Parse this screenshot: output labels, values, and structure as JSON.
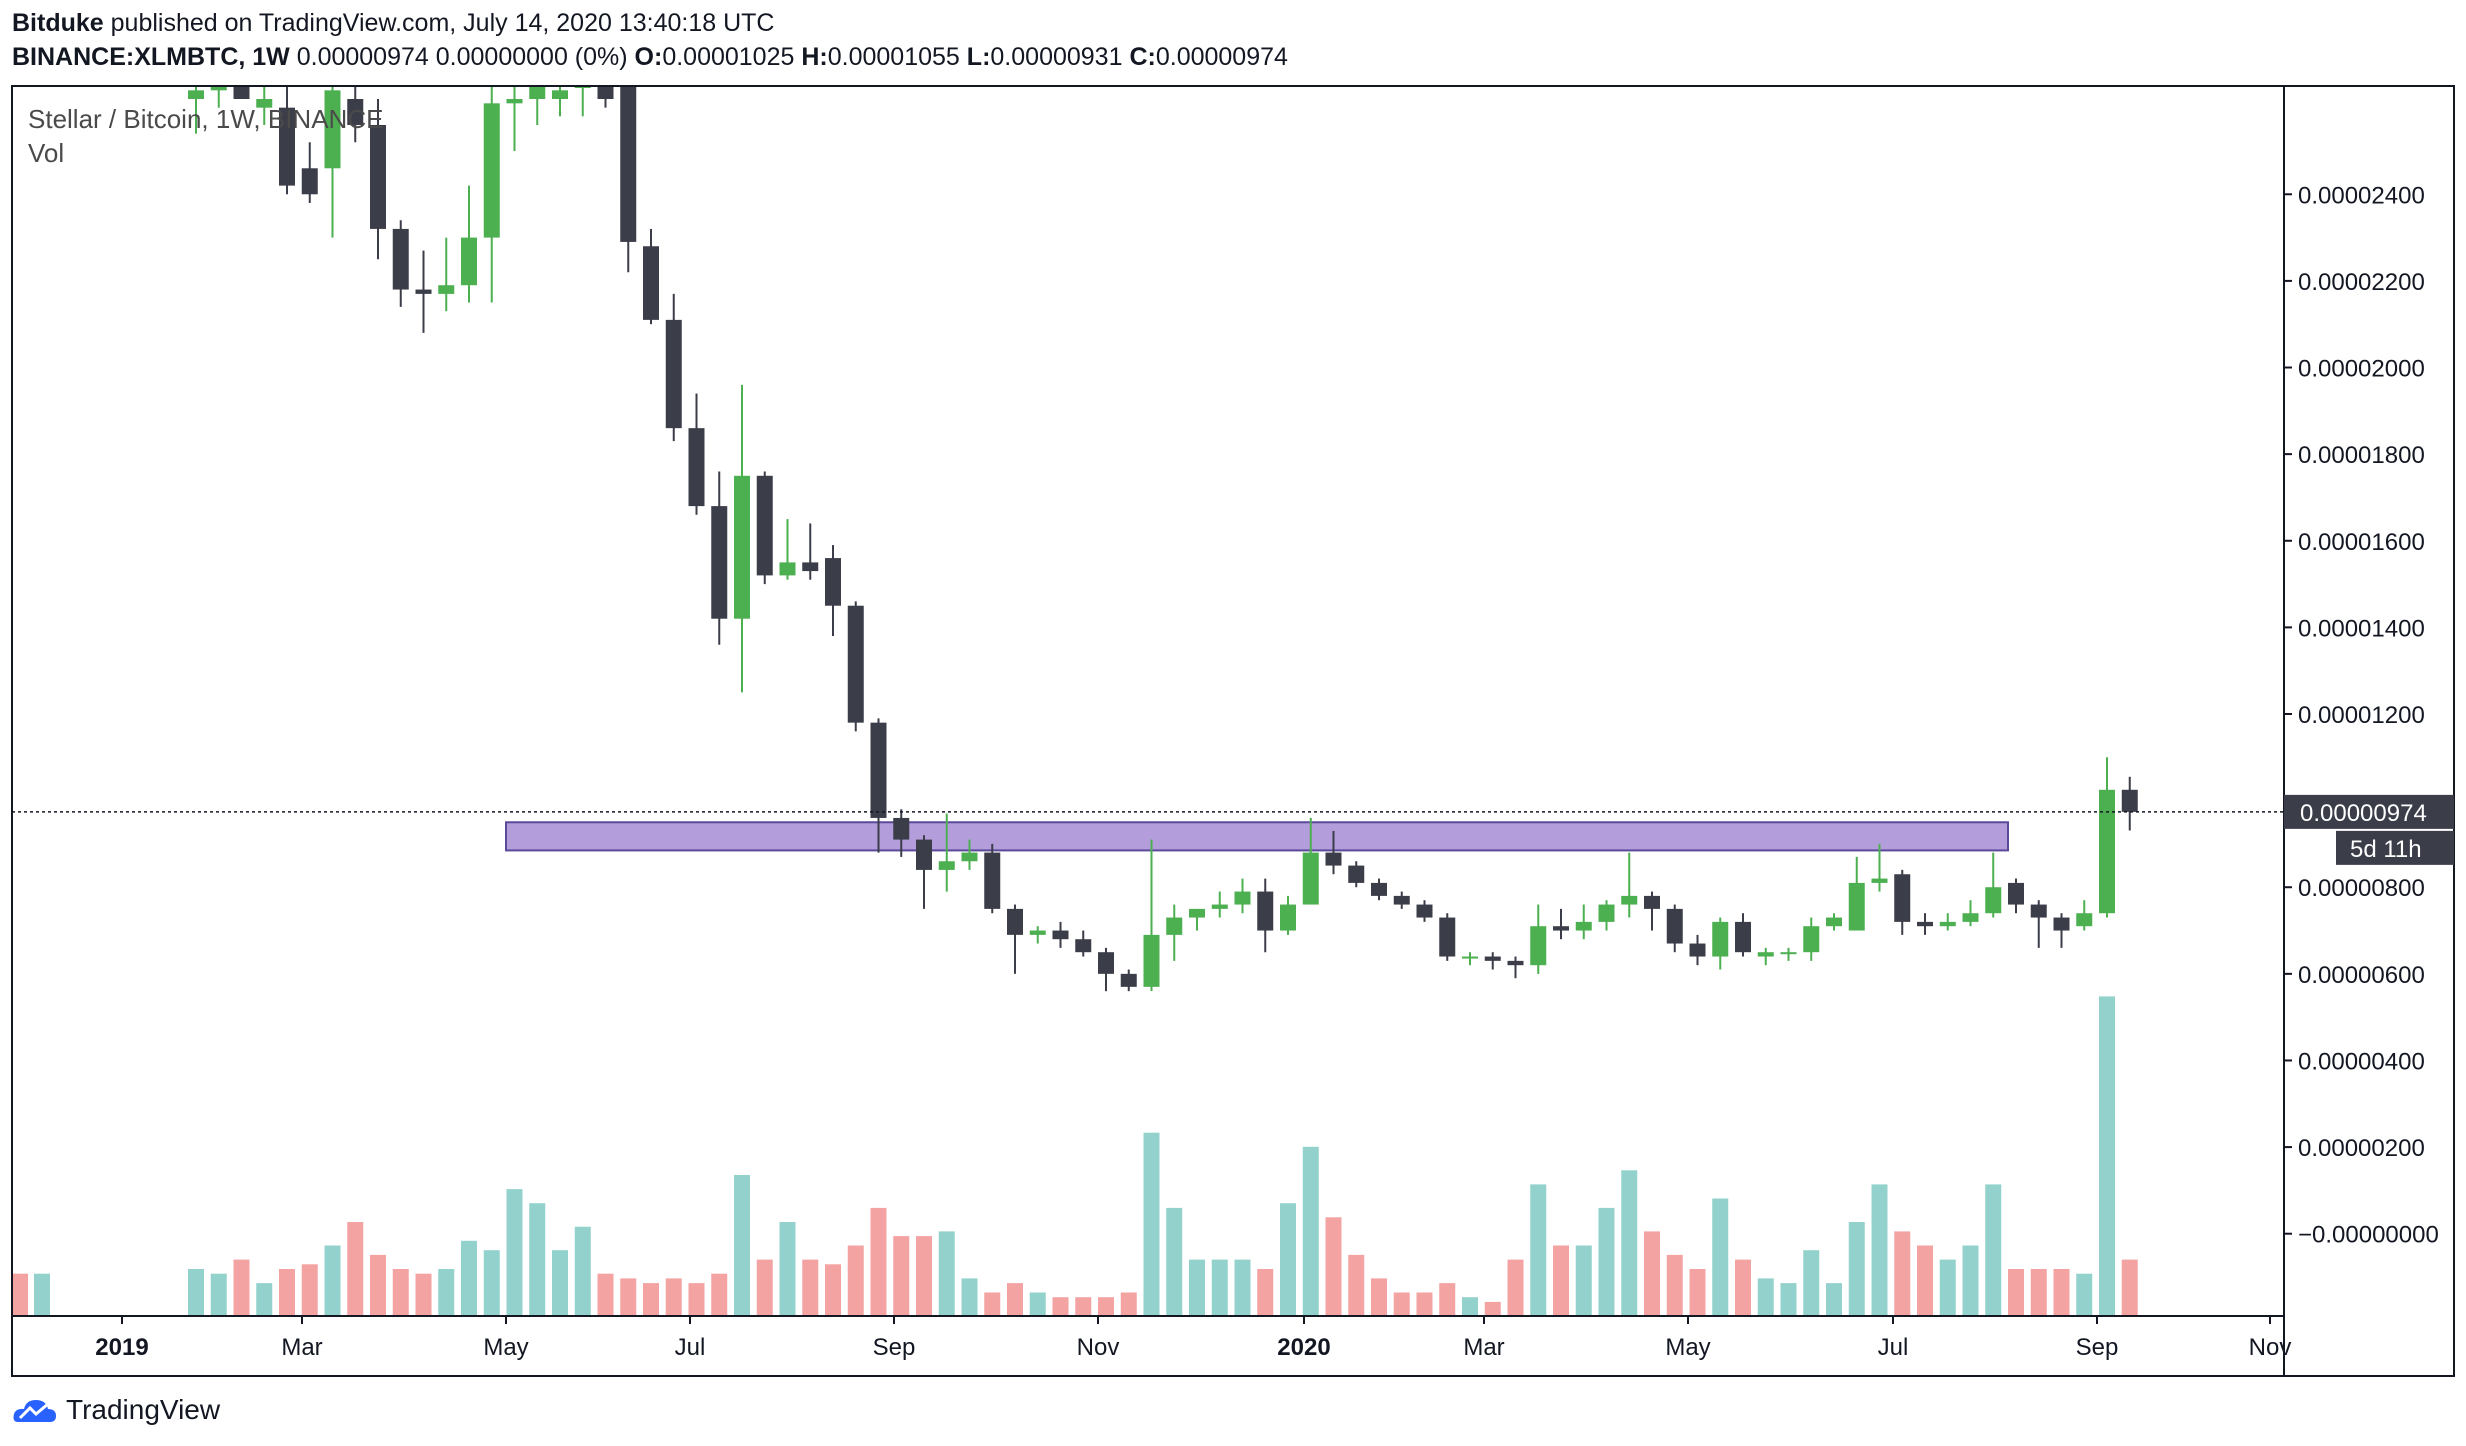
{
  "header": {
    "author": "Bitduke",
    "published_text": "published on TradingView.com, July 14, 2020 13:40:18 UTC",
    "symbol": "BINANCE:XLMBTC, 1W",
    "last": "0.00000974",
    "change": "0.00000000 (0%)",
    "o_label": "O:",
    "o_value": "0.00001025",
    "h_label": "H:",
    "h_value": "0.00001055",
    "l_label": "L:",
    "l_value": "0.00000931",
    "c_label": "C:",
    "c_value": "0.00000974"
  },
  "legend": {
    "title": "Stellar / Bitcoin, 1W, BINANCE",
    "vol": "Vol"
  },
  "price_axis": {
    "ticks": [
      "0.00002400",
      "0.00002200",
      "0.00002000",
      "0.00001800",
      "0.00001600",
      "0.00001400",
      "0.00001200",
      "0.00000800",
      "0.00000600",
      "0.00000400",
      "0.00000200",
      "−0.00000000"
    ],
    "last_label": "0.00000974",
    "countdown": "5d 11h"
  },
  "time_axis": {
    "labels": [
      "2019",
      "Mar",
      "May",
      "Jul",
      "Sep",
      "Nov",
      "2020",
      "Mar",
      "May",
      "Jul",
      "Sep",
      "Nov"
    ]
  },
  "footer": {
    "brand": "TradingView"
  },
  "colors": {
    "up": "#4caf50",
    "down": "#3b3d48",
    "vol_up": "#93d2cc",
    "vol_down": "#f4a3a3",
    "zone": "#b39ddb",
    "zone_border": "#5b4a9a"
  },
  "chart_data": {
    "type": "candlestick",
    "interval": "1W",
    "x_range": [
      "2018-12-10",
      "2020-11-30"
    ],
    "y_range": [
      -1.9e-06,
      2.65e-05
    ],
    "last_price": 9.74e-06,
    "support_zone": {
      "low": 8.85e-06,
      "high": 9.5e-06,
      "start": "2019-05-06",
      "end": "2020-08-03"
    },
    "candles": [
      {
        "o": 2.62e-05,
        "h": 2.7e-05,
        "l": 2.54e-05,
        "c": 2.64e-05,
        "v": 1.0
      },
      {
        "o": 2.64e-05,
        "h": 2.7e-05,
        "l": 2.6e-05,
        "c": 2.66e-05,
        "v": 0.9
      },
      {
        "o": 2.66e-05,
        "h": 2.7e-05,
        "l": 2.62e-05,
        "c": 2.62e-05,
        "v": 1.2
      },
      {
        "o": 2.6e-05,
        "h": 2.69e-05,
        "l": 2.56e-05,
        "c": 2.62e-05,
        "v": 0.7
      },
      {
        "o": 2.6e-05,
        "h": 2.7e-05,
        "l": 2.4e-05,
        "c": 2.42e-05,
        "v": 1.0
      },
      {
        "o": 2.46e-05,
        "h": 2.52e-05,
        "l": 2.38e-05,
        "c": 2.4e-05,
        "v": 1.1
      },
      {
        "o": 2.46e-05,
        "h": 2.65e-05,
        "l": 2.3e-05,
        "c": 2.64e-05,
        "v": 1.5
      },
      {
        "o": 2.62e-05,
        "h": 2.69e-05,
        "l": 2.52e-05,
        "c": 2.56e-05,
        "v": 2.0
      },
      {
        "o": 2.56e-05,
        "h": 2.62e-05,
        "l": 2.25e-05,
        "c": 2.32e-05,
        "v": 1.3
      },
      {
        "o": 2.32e-05,
        "h": 2.34e-05,
        "l": 2.14e-05,
        "c": 2.18e-05,
        "v": 1.0
      },
      {
        "o": 2.18e-05,
        "h": 2.27e-05,
        "l": 2.08e-05,
        "c": 2.17e-05,
        "v": 0.9
      },
      {
        "o": 2.17e-05,
        "h": 2.3e-05,
        "l": 2.13e-05,
        "c": 2.19e-05,
        "v": 1.0
      },
      {
        "o": 2.19e-05,
        "h": 2.42e-05,
        "l": 2.15e-05,
        "c": 2.3e-05,
        "v": 1.6
      },
      {
        "o": 2.3e-05,
        "h": 2.67e-05,
        "l": 2.15e-05,
        "c": 2.61e-05,
        "v": 1.4
      },
      {
        "o": 2.61e-05,
        "h": 2.7e-05,
        "l": 2.5e-05,
        "c": 2.62e-05,
        "v": 2.7
      },
      {
        "o": 2.62e-05,
        "h": 2.7e-05,
        "l": 2.56e-05,
        "c": 2.66e-05,
        "v": 2.4
      },
      {
        "o": 2.62e-05,
        "h": 2.7e-05,
        "l": 2.58e-05,
        "c": 2.64e-05,
        "v": 1.4
      },
      {
        "o": 2.65e-05,
        "h": 2.7e-05,
        "l": 2.58e-05,
        "c": 2.65e-05,
        "v": 1.9
      },
      {
        "o": 2.65e-05,
        "h": 2.69e-05,
        "l": 2.6e-05,
        "c": 2.62e-05,
        "v": 0.9
      },
      {
        "o": 2.68e-05,
        "h": 2.7e-05,
        "l": 2.22e-05,
        "c": 2.29e-05,
        "v": 0.8
      },
      {
        "o": 2.28e-05,
        "h": 2.32e-05,
        "l": 2.1e-05,
        "c": 2.11e-05,
        "v": 0.7
      },
      {
        "o": 2.11e-05,
        "h": 2.17e-05,
        "l": 1.83e-05,
        "c": 1.86e-05,
        "v": 0.8
      },
      {
        "o": 1.86e-05,
        "h": 1.94e-05,
        "l": 1.66e-05,
        "c": 1.68e-05,
        "v": 0.7
      },
      {
        "o": 1.68e-05,
        "h": 1.76e-05,
        "l": 1.36e-05,
        "c": 1.42e-05,
        "v": 0.9
      },
      {
        "o": 1.42e-05,
        "h": 1.96e-05,
        "l": 1.25e-05,
        "c": 1.75e-05,
        "v": 3.0
      },
      {
        "o": 1.75e-05,
        "h": 1.76e-05,
        "l": 1.5e-05,
        "c": 1.52e-05,
        "v": 1.2
      },
      {
        "o": 1.52e-05,
        "h": 1.65e-05,
        "l": 1.51e-05,
        "c": 1.55e-05,
        "v": 2.0
      },
      {
        "o": 1.55e-05,
        "h": 1.64e-05,
        "l": 1.51e-05,
        "c": 1.53e-05,
        "v": 1.2
      },
      {
        "o": 1.56e-05,
        "h": 1.59e-05,
        "l": 1.38e-05,
        "c": 1.45e-05,
        "v": 1.1
      },
      {
        "o": 1.45e-05,
        "h": 1.46e-05,
        "l": 1.16e-05,
        "c": 1.18e-05,
        "v": 1.5
      },
      {
        "o": 1.18e-05,
        "h": 1.19e-05,
        "l": 8.8e-06,
        "c": 9.6e-06,
        "v": 2.3
      },
      {
        "o": 9.6e-06,
        "h": 9.8e-06,
        "l": 8.7e-06,
        "c": 9.1e-06,
        "v": 1.7
      },
      {
        "o": 9.1e-06,
        "h": 9.2e-06,
        "l": 7.5e-06,
        "c": 8.4e-06,
        "v": 1.7
      },
      {
        "o": 8.4e-06,
        "h": 9.7e-06,
        "l": 7.9e-06,
        "c": 8.6e-06,
        "v": 1.8
      },
      {
        "o": 8.6e-06,
        "h": 9.1e-06,
        "l": 8.4e-06,
        "c": 8.8e-06,
        "v": 0.8
      },
      {
        "o": 8.8e-06,
        "h": 9e-06,
        "l": 7.4e-06,
        "c": 7.5e-06,
        "v": 0.5
      },
      {
        "o": 7.5e-06,
        "h": 7.6e-06,
        "l": 6e-06,
        "c": 6.9e-06,
        "v": 0.7
      },
      {
        "o": 6.9e-06,
        "h": 7.1e-06,
        "l": 6.7e-06,
        "c": 7e-06,
        "v": 0.5
      },
      {
        "o": 7e-06,
        "h": 7.2e-06,
        "l": 6.6e-06,
        "c": 6.8e-06,
        "v": 0.4
      },
      {
        "o": 6.8e-06,
        "h": 7e-06,
        "l": 6.4e-06,
        "c": 6.5e-06,
        "v": 0.4
      },
      {
        "o": 6.5e-06,
        "h": 6.6e-06,
        "l": 5.6e-06,
        "c": 6e-06,
        "v": 0.4
      },
      {
        "o": 6e-06,
        "h": 6.1e-06,
        "l": 5.6e-06,
        "c": 5.7e-06,
        "v": 0.5
      },
      {
        "o": 5.7e-06,
        "h": 9.1e-06,
        "l": 5.6e-06,
        "c": 6.9e-06,
        "v": 3.9
      },
      {
        "o": 6.9e-06,
        "h": 7.6e-06,
        "l": 6.3e-06,
        "c": 7.3e-06,
        "v": 2.3
      },
      {
        "o": 7.3e-06,
        "h": 7.5e-06,
        "l": 7e-06,
        "c": 7.5e-06,
        "v": 1.2
      },
      {
        "o": 7.5e-06,
        "h": 7.9e-06,
        "l": 7.3e-06,
        "c": 7.6e-06,
        "v": 1.2
      },
      {
        "o": 7.6e-06,
        "h": 8.2e-06,
        "l": 7.4e-06,
        "c": 7.9e-06,
        "v": 1.2
      },
      {
        "o": 7.9e-06,
        "h": 8.2e-06,
        "l": 6.5e-06,
        "c": 7e-06,
        "v": 1.0
      },
      {
        "o": 7e-06,
        "h": 7.8e-06,
        "l": 6.9e-06,
        "c": 7.6e-06,
        "v": 2.4
      },
      {
        "o": 7.6e-06,
        "h": 9.6e-06,
        "l": 7.6e-06,
        "c": 8.8e-06,
        "v": 3.6
      },
      {
        "o": 8.8e-06,
        "h": 9.3e-06,
        "l": 8.3e-06,
        "c": 8.5e-06,
        "v": 2.1
      },
      {
        "o": 8.5e-06,
        "h": 8.6e-06,
        "l": 8e-06,
        "c": 8.1e-06,
        "v": 1.3
      },
      {
        "o": 8.1e-06,
        "h": 8.2e-06,
        "l": 7.7e-06,
        "c": 7.8e-06,
        "v": 0.8
      },
      {
        "o": 7.8e-06,
        "h": 7.9e-06,
        "l": 7.5e-06,
        "c": 7.6e-06,
        "v": 0.5
      },
      {
        "o": 7.6e-06,
        "h": 7.7e-06,
        "l": 7.2e-06,
        "c": 7.3e-06,
        "v": 0.5
      },
      {
        "o": 7.3e-06,
        "h": 7.4e-06,
        "l": 6.3e-06,
        "c": 6.4e-06,
        "v": 0.7
      },
      {
        "o": 6.4e-06,
        "h": 6.5e-06,
        "l": 6.2e-06,
        "c": 6.4e-06,
        "v": 0.4
      },
      {
        "o": 6.4e-06,
        "h": 6.5e-06,
        "l": 6.1e-06,
        "c": 6.3e-06,
        "v": 0.3
      },
      {
        "o": 6.3e-06,
        "h": 6.4e-06,
        "l": 5.9e-06,
        "c": 6.2e-06,
        "v": 1.2
      },
      {
        "o": 6.2e-06,
        "h": 7.6e-06,
        "l": 6e-06,
        "c": 7.1e-06,
        "v": 2.8
      },
      {
        "o": 7.1e-06,
        "h": 7.5e-06,
        "l": 6.8e-06,
        "c": 7e-06,
        "v": 1.5
      },
      {
        "o": 7e-06,
        "h": 7.6e-06,
        "l": 6.8e-06,
        "c": 7.2e-06,
        "v": 1.5
      },
      {
        "o": 7.2e-06,
        "h": 7.7e-06,
        "l": 7e-06,
        "c": 7.6e-06,
        "v": 2.3
      },
      {
        "o": 7.6e-06,
        "h": 8.8e-06,
        "l": 7.3e-06,
        "c": 7.8e-06,
        "v": 3.1
      },
      {
        "o": 7.8e-06,
        "h": 7.9e-06,
        "l": 7e-06,
        "c": 7.5e-06,
        "v": 1.8
      },
      {
        "o": 7.5e-06,
        "h": 7.6e-06,
        "l": 6.5e-06,
        "c": 6.7e-06,
        "v": 1.3
      },
      {
        "o": 6.7e-06,
        "h": 6.9e-06,
        "l": 6.2e-06,
        "c": 6.4e-06,
        "v": 1.0
      },
      {
        "o": 6.4e-06,
        "h": 7.3e-06,
        "l": 6.1e-06,
        "c": 7.2e-06,
        "v": 2.5
      },
      {
        "o": 7.2e-06,
        "h": 7.4e-06,
        "l": 6.4e-06,
        "c": 6.5e-06,
        "v": 1.2
      },
      {
        "o": 6.4e-06,
        "h": 6.6e-06,
        "l": 6.2e-06,
        "c": 6.5e-06,
        "v": 0.8
      },
      {
        "o": 6.5e-06,
        "h": 6.6e-06,
        "l": 6.3e-06,
        "c": 6.5e-06,
        "v": 0.7
      },
      {
        "o": 6.5e-06,
        "h": 7.3e-06,
        "l": 6.3e-06,
        "c": 7.1e-06,
        "v": 1.4
      },
      {
        "o": 7.1e-06,
        "h": 7.4e-06,
        "l": 7e-06,
        "c": 7.3e-06,
        "v": 0.7
      },
      {
        "o": 7e-06,
        "h": 8.7e-06,
        "l": 7e-06,
        "c": 8.1e-06,
        "v": 2.0
      },
      {
        "o": 8.1e-06,
        "h": 9e-06,
        "l": 7.9e-06,
        "c": 8.2e-06,
        "v": 2.8
      },
      {
        "o": 8.3e-06,
        "h": 8.4e-06,
        "l": 6.9e-06,
        "c": 7.2e-06,
        "v": 1.8
      },
      {
        "o": 7.2e-06,
        "h": 7.4e-06,
        "l": 6.9e-06,
        "c": 7.1e-06,
        "v": 1.5
      },
      {
        "o": 7.1e-06,
        "h": 7.4e-06,
        "l": 7e-06,
        "c": 7.2e-06,
        "v": 1.2
      },
      {
        "o": 7.2e-06,
        "h": 7.7e-06,
        "l": 7.1e-06,
        "c": 7.4e-06,
        "v": 1.5
      },
      {
        "o": 7.4e-06,
        "h": 8.8e-06,
        "l": 7.3e-06,
        "c": 8e-06,
        "v": 2.8
      },
      {
        "o": 8.1e-06,
        "h": 8.2e-06,
        "l": 7.4e-06,
        "c": 7.6e-06,
        "v": 1.0
      },
      {
        "o": 7.6e-06,
        "h": 7.7e-06,
        "l": 6.6e-06,
        "c": 7.3e-06,
        "v": 1.0
      },
      {
        "o": 7.3e-06,
        "h": 7.4e-06,
        "l": 6.6e-06,
        "c": 7e-06,
        "v": 1.0
      },
      {
        "o": 7.1e-06,
        "h": 7.7e-06,
        "l": 7e-06,
        "c": 7.4e-06,
        "v": 0.9
      },
      {
        "o": 7.4e-06,
        "h": 1.1e-05,
        "l": 7.3e-06,
        "c": 1.025e-05,
        "v": 6.8
      },
      {
        "o": 1.025e-05,
        "h": 1.055e-05,
        "l": 9.31e-06,
        "c": 9.74e-06,
        "v": 1.2
      }
    ]
  }
}
